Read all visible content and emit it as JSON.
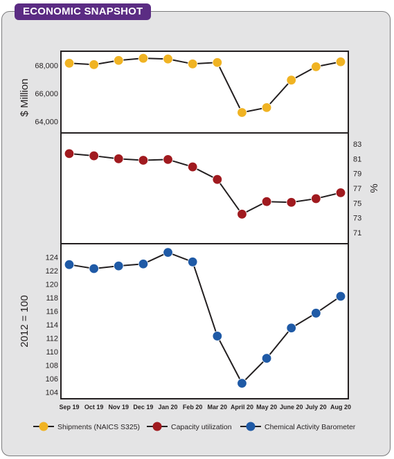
{
  "header": {
    "title": "ECONOMIC SNAPSHOT"
  },
  "colors": {
    "header_bg": "#5b2c83",
    "shipments": "#f0b323",
    "capacity": "#a01a1f",
    "barometer": "#1f5aa6",
    "line": "#231f20"
  },
  "chart_data": {
    "type": "line",
    "categories": [
      "Sep 19",
      "Oct 19",
      "Nov 19",
      "Dec 19",
      "Jan 20",
      "Feb 20",
      "Mar 20",
      "April 20",
      "May 20",
      "June 20",
      "July 20",
      "Aug 20"
    ],
    "panels": [
      {
        "id": "shipments",
        "ylabel": "$ Million",
        "y_axis_side": "left",
        "ylim": [
          63200,
          69000
        ],
        "ticks": [
          64000,
          66000,
          68000
        ],
        "tick_labels": [
          "64,000",
          "66,000",
          "68,000"
        ],
        "series": [
          {
            "name": "Shipments (NAICS S325)",
            "color": "#f0b323",
            "values": [
              68150,
              68050,
              68350,
              68500,
              68450,
              68100,
              68200,
              64650,
              65000,
              66950,
              67900,
              68250
            ]
          }
        ]
      },
      {
        "id": "capacity",
        "ylabel": "%",
        "y_axis_side": "right",
        "ylim": [
          69.5,
          84.5
        ],
        "ticks": [
          71,
          73,
          75,
          77,
          79,
          81,
          83
        ],
        "tick_labels": [
          "71",
          "73",
          "75",
          "77",
          "79",
          "81",
          "83"
        ],
        "series": [
          {
            "name": "Capacity utilization",
            "color": "#a01a1f",
            "values": [
              81.7,
              81.4,
              81.0,
              80.8,
              80.9,
              79.9,
              78.2,
              73.5,
              75.2,
              75.1,
              75.6,
              76.4
            ]
          }
        ]
      },
      {
        "id": "barometer",
        "ylabel": "2012 = 100",
        "y_axis_side": "left",
        "ylim": [
          103,
          126
        ],
        "ticks": [
          104,
          106,
          108,
          110,
          112,
          114,
          116,
          118,
          120,
          122,
          124
        ],
        "tick_labels": [
          "104",
          "106",
          "108",
          "110",
          "112",
          "114",
          "116",
          "118",
          "120",
          "122",
          "124"
        ],
        "series": [
          {
            "name": "Chemical Activity Barometer",
            "color": "#1f5aa6",
            "values": [
              122.9,
              122.3,
              122.7,
              123.0,
              124.7,
              123.3,
              112.3,
              105.3,
              109.0,
              113.5,
              115.7,
              118.2
            ]
          }
        ]
      }
    ],
    "legend": {
      "placement": "bottom",
      "items": [
        {
          "label": "Shipments (NAICS S325)",
          "color": "#f0b323"
        },
        {
          "label": "Capacity utilization",
          "color": "#a01a1f"
        },
        {
          "label": "Chemical Activity Barometer",
          "color": "#1f5aa6"
        }
      ]
    },
    "grid": false
  }
}
